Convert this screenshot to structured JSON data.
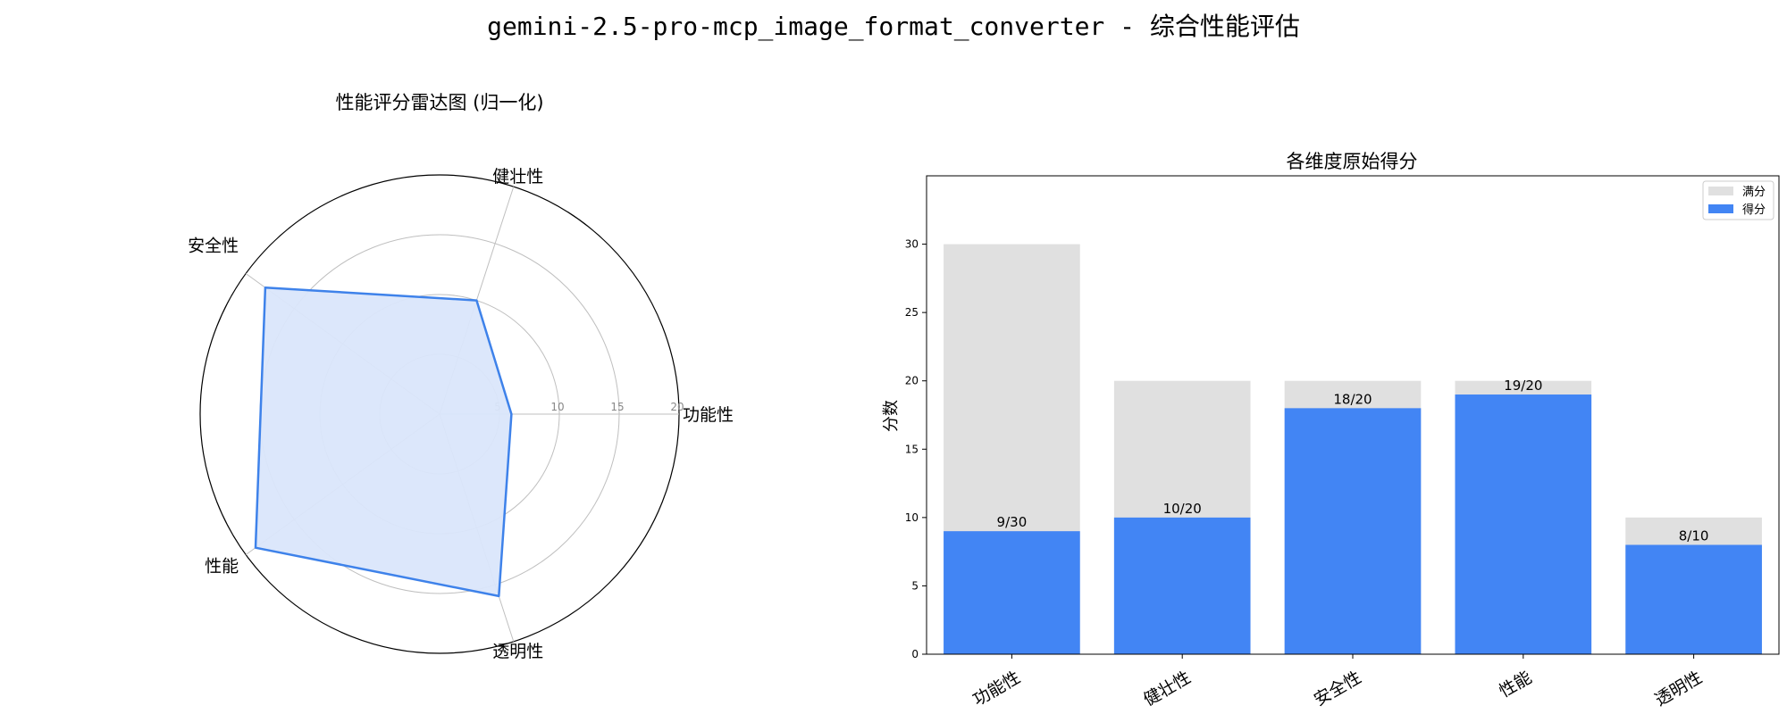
{
  "figure": {
    "title": "gemini-2.5-pro-mcp_image_format_converter - 综合性能评估"
  },
  "colors": {
    "score": "#4285f4",
    "max": "#e0e0e0",
    "radar_fill": "#dae6fb",
    "radar_line": "#3e82ea",
    "grid": "#bfbfbf"
  },
  "chart_data": [
    {
      "type": "radar",
      "title": "性能评分雷达图 (归一化)",
      "axes": [
        "功能性",
        "健壮性",
        "安全性",
        "性能",
        "透明性"
      ],
      "values": [
        6.0,
        10.0,
        18.0,
        19.0,
        16.0
      ],
      "rmax": 20,
      "rticks": [
        5,
        10,
        15,
        20
      ],
      "rtick_labels": [
        "5",
        "10",
        "15",
        "20"
      ],
      "grid": true
    },
    {
      "type": "bar",
      "title": "各维度原始得分",
      "categories": [
        "功能性",
        "健壮性",
        "安全性",
        "性能",
        "透明性"
      ],
      "series": [
        {
          "name": "满分",
          "values": [
            30,
            20,
            20,
            20,
            10
          ]
        },
        {
          "name": "得分",
          "values": [
            9,
            10,
            18,
            19,
            8
          ]
        }
      ],
      "bar_labels": [
        "9/30",
        "10/20",
        "18/20",
        "19/20",
        "8/10"
      ],
      "ylabel": "分数",
      "xlabel": "",
      "ylim": [
        0,
        35
      ],
      "yticks": [
        0,
        5,
        10,
        15,
        20,
        25,
        30
      ],
      "legend": "top-right",
      "grid": false
    }
  ]
}
